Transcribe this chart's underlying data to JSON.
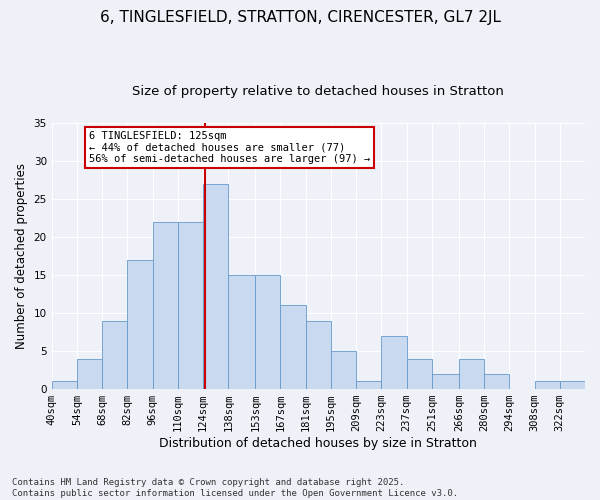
{
  "title1": "6, TINGLESFIELD, STRATTON, CIRENCESTER, GL7 2JL",
  "title2": "Size of property relative to detached houses in Stratton",
  "xlabel": "Distribution of detached houses by size in Stratton",
  "ylabel": "Number of detached properties",
  "bin_labels": [
    "40sqm",
    "54sqm",
    "68sqm",
    "82sqm",
    "96sqm",
    "110sqm",
    "124sqm",
    "138sqm",
    "153sqm",
    "167sqm",
    "181sqm",
    "195sqm",
    "209sqm",
    "223sqm",
    "237sqm",
    "251sqm",
    "266sqm",
    "280sqm",
    "294sqm",
    "308sqm",
    "322sqm"
  ],
  "bin_edges": [
    40,
    54,
    68,
    82,
    96,
    110,
    124,
    138,
    153,
    167,
    181,
    195,
    209,
    223,
    237,
    251,
    266,
    280,
    294,
    308,
    322
  ],
  "counts": [
    1,
    4,
    9,
    17,
    22,
    22,
    27,
    15,
    15,
    11,
    9,
    5,
    1,
    7,
    4,
    2,
    4,
    2,
    0,
    1,
    1
  ],
  "bar_color": "#c9d9f0",
  "bar_edge_color": "#6699cc",
  "ref_line_x": 125,
  "annotation_text": "6 TINGLESFIELD: 125sqm\n← 44% of detached houses are smaller (77)\n56% of semi-detached houses are larger (97) →",
  "annotation_box_color": "#ffffff",
  "annotation_box_edge_color": "#cc0000",
  "ref_line_color": "#cc0000",
  "ylim": [
    0,
    35
  ],
  "yticks": [
    0,
    5,
    10,
    15,
    20,
    25,
    30,
    35
  ],
  "background_color": "#eef2f8",
  "footer_text": "Contains HM Land Registry data © Crown copyright and database right 2025.\nContains public sector information licensed under the Open Government Licence v3.0.",
  "title1_fontsize": 11,
  "title2_fontsize": 9.5,
  "xlabel_fontsize": 9,
  "ylabel_fontsize": 8.5,
  "tick_fontsize": 7.5,
  "footer_fontsize": 6.5,
  "annot_fontsize": 7.5
}
